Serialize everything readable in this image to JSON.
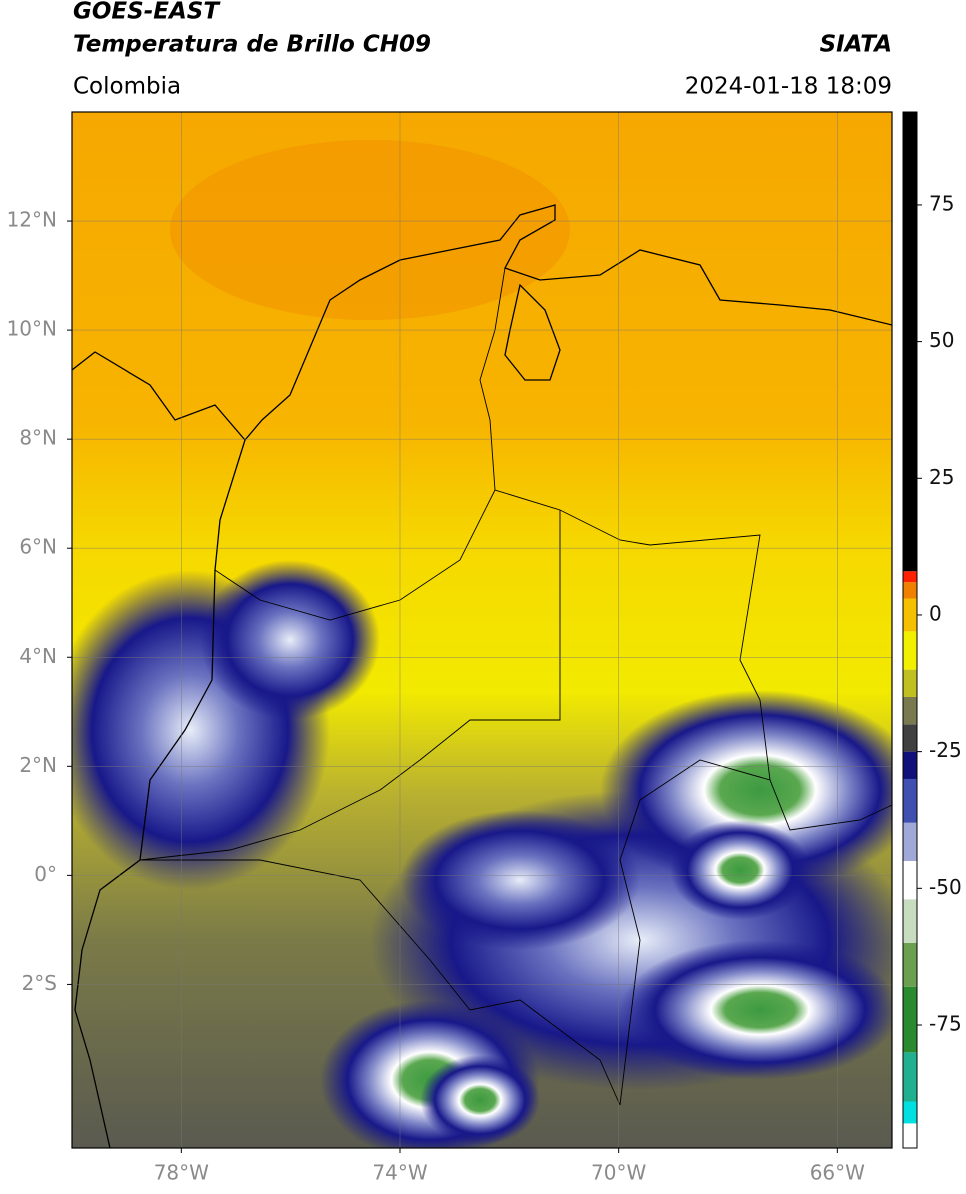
{
  "header": {
    "title": "GOES-EAST",
    "subtitle": "Temperatura de Brillo CH09",
    "source": "SIATA",
    "region": "Colombia",
    "datetime": "2024-01-18 18:09"
  },
  "map": {
    "lonlim": [
      -80,
      -65
    ],
    "latlim": [
      -5,
      14
    ],
    "grid": true,
    "lonticks": [
      {
        "value": -78,
        "label": "78°W"
      },
      {
        "value": -74,
        "label": "74°W"
      },
      {
        "value": -70,
        "label": "70°W"
      },
      {
        "value": -66,
        "label": "66°W"
      }
    ],
    "latticks": [
      {
        "value": 12,
        "label": "12°N"
      },
      {
        "value": 10,
        "label": "10°N"
      },
      {
        "value": 8,
        "label": "8°N"
      },
      {
        "value": 6,
        "label": "6°N"
      },
      {
        "value": 4,
        "label": "4°N"
      },
      {
        "value": 2,
        "label": "2°N"
      },
      {
        "value": 0,
        "label": "0°"
      },
      {
        "value": -2,
        "label": "2°S"
      }
    ]
  },
  "colorbar": {
    "lim": [
      -97.5,
      92
    ],
    "ticks": [
      -75,
      -50,
      -25,
      0,
      25,
      50,
      75
    ],
    "segments": [
      {
        "from": -97.5,
        "to": -93,
        "color": "#ffffff"
      },
      {
        "from": -93,
        "to": -89,
        "color": "#00e0e0"
      },
      {
        "from": -89,
        "to": -80,
        "color": "#20b090"
      },
      {
        "from": -80,
        "to": -68,
        "color": "#2a8a30"
      },
      {
        "from": -68,
        "to": -60,
        "color": "#6aa050"
      },
      {
        "from": -60,
        "to": -52,
        "color": "#c8dcc0"
      },
      {
        "from": -52,
        "to": -45,
        "color": "#ffffff"
      },
      {
        "from": -45,
        "to": -38,
        "color": "#a0a8d8"
      },
      {
        "from": -38,
        "to": -30,
        "color": "#4050b0"
      },
      {
        "from": -30,
        "to": -25,
        "color": "#10107a"
      },
      {
        "from": -25,
        "to": -20,
        "color": "#404040"
      },
      {
        "from": -20,
        "to": -15,
        "color": "#7a7a50"
      },
      {
        "from": -15,
        "to": -10,
        "color": "#c0c020"
      },
      {
        "from": -10,
        "to": -3,
        "color": "#f0f000"
      },
      {
        "from": -3,
        "to": 3,
        "color": "#f5c000"
      },
      {
        "from": 3,
        "to": 6,
        "color": "#f08000"
      },
      {
        "from": 6,
        "to": 8,
        "color": "#ff2000"
      },
      {
        "from": 8,
        "to": 92,
        "color": "#000000"
      }
    ]
  }
}
